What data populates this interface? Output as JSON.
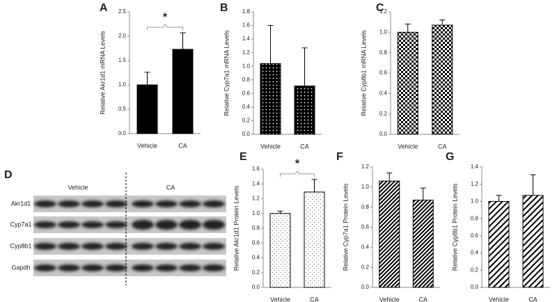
{
  "chart_data": [
    {
      "type": "bar",
      "panel": "A",
      "ylabel": "Relative Akr1d1 mRNA Levels",
      "categories": [
        "Vehicle",
        "CA"
      ],
      "values": [
        1.0,
        1.73
      ],
      "errors": [
        0.26,
        0.34
      ],
      "pattern": "solid",
      "color": "#000000",
      "ylim": [
        0,
        2.5
      ],
      "yticks": [
        {
          "value": 0,
          "label": "0.0"
        },
        0.5,
        {
          "value": 1,
          "label": "1.0"
        },
        1.5,
        {
          "value": 2,
          "label": "2.0"
        },
        2.5
      ],
      "annotation": "*"
    },
    {
      "type": "bar",
      "panel": "B",
      "ylabel": "Relative Cyp7a1 mRNA Levels",
      "categories": [
        "Vehicle",
        "CA"
      ],
      "values": [
        1.04,
        0.71
      ],
      "errors": [
        0.56,
        0.56
      ],
      "pattern": "dots",
      "color": "#000000",
      "ylim": [
        0,
        1.8
      ],
      "yticks": [
        {
          "value": 0,
          "label": "0.0"
        },
        0.2,
        0.4,
        0.6,
        0.8,
        {
          "value": 1,
          "label": "1.0"
        },
        1.2,
        1.4,
        1.6,
        1.8
      ]
    },
    {
      "type": "bar",
      "panel": "C",
      "ylabel": "Relative Cyp8b1 mRNA Levels",
      "categories": [
        "Vehicle",
        "CA"
      ],
      "values": [
        1.0,
        1.07
      ],
      "errors": [
        0.08,
        0.05
      ],
      "pattern": "checker",
      "color": "#000000",
      "ylim": [
        0,
        1.2
      ],
      "yticks": [
        {
          "value": 0,
          "label": "0.0"
        },
        0.2,
        0.4,
        0.6,
        0.8,
        {
          "value": 1,
          "label": "1.0"
        },
        1.2
      ]
    },
    {
      "type": "bar",
      "panel": "E",
      "ylabel": "Relative Akr1d1 Protein Levels",
      "categories": [
        "Vehicle",
        "CA"
      ],
      "values": [
        1.0,
        1.29
      ],
      "errors": [
        0.03,
        0.17
      ],
      "pattern": "sparse-dots",
      "color": "#000000",
      "ylim": [
        0,
        1.6
      ],
      "yticks": [
        {
          "value": 0,
          "label": "0.0"
        },
        0.2,
        0.4,
        0.6,
        0.8,
        {
          "value": 1,
          "label": "1.0"
        },
        1.2,
        1.4,
        1.6
      ],
      "annotation": "*"
    },
    {
      "type": "bar",
      "panel": "F",
      "ylabel": "Relative Cyp7a1 Protein Levels",
      "categories": [
        "Vehicle",
        "CA"
      ],
      "values": [
        1.06,
        0.87
      ],
      "errors": [
        0.08,
        0.12
      ],
      "pattern": "dense-diagonal",
      "color": "#000000",
      "ylim": [
        0,
        1.2
      ],
      "yticks": [
        {
          "value": 0,
          "label": "0.0"
        },
        0.2,
        0.4,
        0.6,
        0.8,
        {
          "value": 1,
          "label": "1.0"
        },
        1.2
      ]
    },
    {
      "type": "bar",
      "panel": "G",
      "ylabel": "Relative Cyp8b1 Protein Levels",
      "categories": [
        "Vehicle",
        "CA"
      ],
      "values": [
        1.0,
        1.07
      ],
      "errors": [
        0.07,
        0.24
      ],
      "pattern": "diagonal",
      "color": "#000000",
      "ylim": [
        0,
        1.4
      ],
      "yticks": [
        {
          "value": 0,
          "label": "0.0"
        },
        0.2,
        0.4,
        0.6,
        0.8,
        {
          "value": 1,
          "label": "1.0"
        },
        1.2,
        1.4
      ]
    }
  ],
  "blot": {
    "panel": "D",
    "groups": [
      "Vehicle",
      "CA"
    ],
    "rows": [
      "Akr1d1",
      "Cyp7a1",
      "Cyp8b1",
      "Gapdh"
    ]
  }
}
